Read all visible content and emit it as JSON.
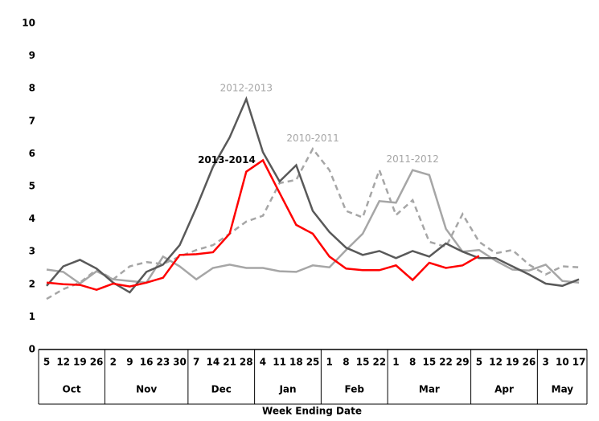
{
  "chart_data": {
    "type": "line",
    "x_label": "Week Ending Date",
    "groups": [
      {
        "label": "Oct",
        "categories": [
          "5",
          "12",
          "19",
          "26"
        ]
      },
      {
        "label": "Nov",
        "categories": [
          "2",
          "9",
          "16",
          "23",
          "30"
        ]
      },
      {
        "label": "Dec",
        "categories": [
          "7",
          "14",
          "21",
          "28"
        ]
      },
      {
        "label": "Jan",
        "categories": [
          "4",
          "11",
          "18",
          "25"
        ]
      },
      {
        "label": "Feb",
        "categories": [
          "1",
          "8",
          "15",
          "22"
        ]
      },
      {
        "label": "Mar",
        "categories": [
          "1",
          "8",
          "15",
          "22",
          "29"
        ]
      },
      {
        "label": "Apr",
        "categories": [
          "5",
          "12",
          "19",
          "26"
        ]
      },
      {
        "label": "May",
        "categories": [
          "3",
          "10",
          "17"
        ]
      }
    ],
    "ylim": [
      0,
      10
    ],
    "yticks": [
      0,
      1,
      2,
      3,
      4,
      5,
      6,
      7,
      8,
      9,
      10
    ],
    "series": [
      {
        "name": "2011-2012",
        "color": "#a6a6a6",
        "dashed": false,
        "values": [
          2.45,
          2.38,
          2.02,
          2.4,
          2.15,
          2.1,
          2.05,
          2.85,
          2.55,
          2.15,
          2.5,
          2.6,
          2.5,
          2.5,
          2.4,
          2.38,
          2.58,
          2.52,
          3.05,
          3.55,
          4.55,
          4.5,
          5.5,
          5.35,
          3.7,
          3.0,
          3.05,
          2.72,
          2.45,
          2.42,
          2.6,
          2.1,
          2.05
        ]
      },
      {
        "name": "2010-2011",
        "color": "#a6a6a6",
        "dashed": true,
        "values": [
          1.55,
          1.85,
          2.05,
          2.45,
          2.15,
          2.55,
          2.68,
          2.62,
          2.85,
          3.05,
          3.2,
          3.55,
          3.92,
          4.1,
          5.1,
          5.2,
          6.15,
          5.5,
          4.25,
          4.05,
          5.5,
          4.12,
          4.58,
          3.3,
          3.15,
          4.15,
          3.3,
          2.95,
          3.05,
          2.6,
          2.3,
          2.55,
          2.52
        ]
      },
      {
        "name": "2012-2013",
        "color": "#595959",
        "dashed": false,
        "values": [
          1.95,
          2.55,
          2.75,
          2.48,
          2.05,
          1.75,
          2.38,
          2.6,
          3.2,
          4.35,
          5.6,
          6.5,
          7.68,
          6.05,
          5.15,
          5.65,
          4.25,
          3.6,
          3.12,
          2.9,
          3.02,
          2.8,
          3.02,
          2.85,
          3.25,
          3.0,
          2.8,
          2.8,
          2.55,
          2.3,
          2.02,
          1.95,
          2.15
        ]
      },
      {
        "name": "2013-2014",
        "color": "#ff0000",
        "dashed": false,
        "values": [
          2.05,
          2.0,
          1.98,
          1.83,
          2.02,
          1.93,
          2.05,
          2.2,
          2.9,
          2.92,
          2.98,
          3.55,
          5.45,
          5.8,
          4.8,
          3.82,
          3.55,
          2.85,
          2.48,
          2.43,
          2.43,
          2.58,
          2.13,
          2.66,
          2.5,
          2.58,
          2.87,
          null,
          null,
          null,
          null,
          null,
          null
        ]
      }
    ]
  }
}
